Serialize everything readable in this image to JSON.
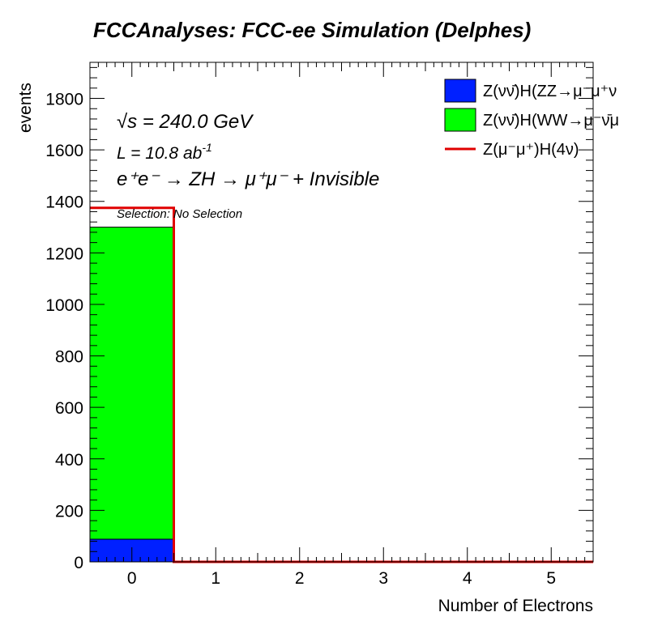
{
  "chart_data": {
    "type": "bar",
    "title": "FCCAnalyses: FCC-ee Simulation (Delphes)",
    "xlabel": "Number of Electrons",
    "ylabel": "events",
    "xlim": [
      -0.5,
      5.5
    ],
    "ylim": [
      0,
      1940
    ],
    "x_ticks": [
      "0",
      "1",
      "2",
      "3",
      "4",
      "5"
    ],
    "y_ticks": [
      "0",
      "200",
      "400",
      "600",
      "800",
      "1000",
      "1200",
      "1400",
      "1600",
      "1800"
    ],
    "bins": [
      0,
      1,
      2,
      3,
      4,
      5
    ],
    "stacked_series": [
      {
        "name": "Z(νν̄)H(ZZ→μ⁻μ⁺ν",
        "color": "#0020ff",
        "values": [
          88,
          0,
          0,
          0,
          0,
          0
        ]
      },
      {
        "name": "Z(νν̄)H(WW→μ⁻ν̄μ",
        "color": "#00ff00",
        "values": [
          1212,
          0,
          0,
          0,
          0,
          0
        ]
      }
    ],
    "line_series": [
      {
        "name": "Z(μ⁻μ⁺)H(4ν)",
        "color": "#e00000",
        "values": [
          1375,
          0,
          0,
          0,
          0,
          0
        ]
      }
    ],
    "annotations": {
      "energy": "√s = 240.0 GeV",
      "lumi_text": "L = 10.8 ab",
      "lumi_exp": "-1",
      "process": "e⁺e⁻ → ZH → μ⁺μ⁻ + Invisible",
      "selection": "Selection: No Selection"
    },
    "legend_placement": "top-right",
    "grid": false
  }
}
